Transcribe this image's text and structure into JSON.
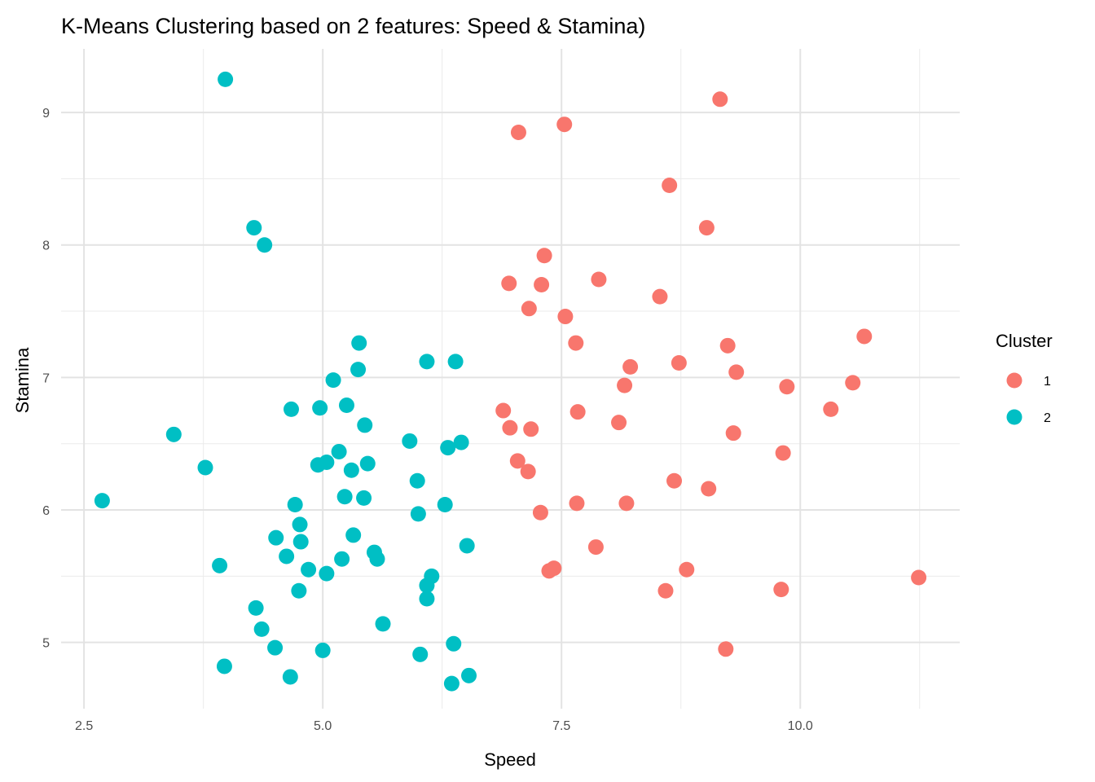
{
  "chart_data": {
    "type": "scatter",
    "title": "K-Means Clustering based on 2 features: Speed & Stamina)",
    "xlabel": "Speed",
    "ylabel": "Stamina",
    "xlim": [
      2.26,
      11.67
    ],
    "ylim": [
      4.5,
      9.48
    ],
    "xticks": [
      2.5,
      5.0,
      7.5,
      10.0
    ],
    "xtick_labels": [
      "2.5",
      "5.0",
      "7.5",
      "10.0"
    ],
    "yticks": [
      5,
      6,
      7,
      8,
      9
    ],
    "ytick_labels": [
      "5",
      "6",
      "7",
      "8",
      "9"
    ],
    "x_minor": [
      3.75,
      6.25,
      8.75,
      11.25
    ],
    "y_minor": [
      5.5,
      6.5,
      7.5,
      8.5
    ],
    "grid": true,
    "legend": {
      "title": "Cluster",
      "placement": "right"
    },
    "series": [
      {
        "name": "1",
        "color": "#F8766D",
        "points": [
          [
            9.16,
            9.1
          ],
          [
            7.53,
            8.91
          ],
          [
            7.05,
            8.85
          ],
          [
            8.63,
            8.45
          ],
          [
            9.02,
            8.13
          ],
          [
            7.32,
            7.92
          ],
          [
            6.95,
            7.71
          ],
          [
            7.29,
            7.7
          ],
          [
            7.89,
            7.74
          ],
          [
            8.53,
            7.61
          ],
          [
            7.16,
            7.52
          ],
          [
            7.54,
            7.46
          ],
          [
            7.65,
            7.26
          ],
          [
            10.67,
            7.31
          ],
          [
            9.24,
            7.24
          ],
          [
            8.22,
            7.08
          ],
          [
            8.73,
            7.11
          ],
          [
            9.33,
            7.04
          ],
          [
            8.16,
            6.94
          ],
          [
            10.55,
            6.96
          ],
          [
            9.86,
            6.93
          ],
          [
            6.89,
            6.75
          ],
          [
            7.67,
            6.74
          ],
          [
            6.96,
            6.62
          ],
          [
            7.18,
            6.61
          ],
          [
            10.32,
            6.76
          ],
          [
            8.1,
            6.66
          ],
          [
            9.3,
            6.58
          ],
          [
            9.82,
            6.43
          ],
          [
            7.04,
            6.37
          ],
          [
            7.15,
            6.29
          ],
          [
            8.68,
            6.22
          ],
          [
            9.04,
            6.16
          ],
          [
            7.28,
            5.98
          ],
          [
            7.66,
            6.05
          ],
          [
            8.18,
            6.05
          ],
          [
            7.86,
            5.72
          ],
          [
            7.42,
            5.56
          ],
          [
            7.37,
            5.54
          ],
          [
            8.81,
            5.55
          ],
          [
            11.24,
            5.49
          ],
          [
            8.59,
            5.39
          ],
          [
            9.8,
            5.4
          ],
          [
            9.22,
            4.95
          ]
        ]
      },
      {
        "name": "2",
        "color": "#00BFC4",
        "points": [
          [
            3.98,
            9.25
          ],
          [
            4.28,
            8.13
          ],
          [
            4.39,
            8.0
          ],
          [
            5.38,
            7.26
          ],
          [
            5.37,
            7.06
          ],
          [
            6.09,
            7.12
          ],
          [
            6.39,
            7.12
          ],
          [
            5.11,
            6.98
          ],
          [
            4.67,
            6.76
          ],
          [
            4.97,
            6.77
          ],
          [
            5.25,
            6.79
          ],
          [
            5.44,
            6.64
          ],
          [
            3.44,
            6.57
          ],
          [
            5.91,
            6.52
          ],
          [
            6.45,
            6.51
          ],
          [
            6.31,
            6.47
          ],
          [
            5.17,
            6.44
          ],
          [
            4.95,
            6.34
          ],
          [
            5.04,
            6.36
          ],
          [
            5.47,
            6.35
          ],
          [
            5.3,
            6.3
          ],
          [
            3.77,
            6.32
          ],
          [
            2.69,
            6.07
          ],
          [
            4.71,
            6.04
          ],
          [
            5.23,
            6.1
          ],
          [
            5.43,
            6.09
          ],
          [
            5.99,
            6.22
          ],
          [
            6.28,
            6.04
          ],
          [
            6.0,
            5.97
          ],
          [
            4.76,
            5.89
          ],
          [
            6.51,
            5.73
          ],
          [
            4.51,
            5.79
          ],
          [
            4.77,
            5.76
          ],
          [
            5.32,
            5.81
          ],
          [
            5.54,
            5.68
          ],
          [
            5.57,
            5.63
          ],
          [
            4.62,
            5.65
          ],
          [
            3.92,
            5.58
          ],
          [
            4.85,
            5.55
          ],
          [
            5.04,
            5.52
          ],
          [
            5.2,
            5.63
          ],
          [
            6.14,
            5.5
          ],
          [
            6.09,
            5.43
          ],
          [
            4.75,
            5.39
          ],
          [
            6.09,
            5.33
          ],
          [
            4.3,
            5.26
          ],
          [
            4.36,
            5.1
          ],
          [
            5.63,
            5.14
          ],
          [
            6.37,
            4.99
          ],
          [
            4.5,
            4.96
          ],
          [
            5.0,
            4.94
          ],
          [
            6.02,
            4.91
          ],
          [
            3.97,
            4.82
          ],
          [
            4.66,
            4.74
          ],
          [
            6.53,
            4.75
          ],
          [
            6.35,
            4.69
          ]
        ]
      }
    ]
  }
}
